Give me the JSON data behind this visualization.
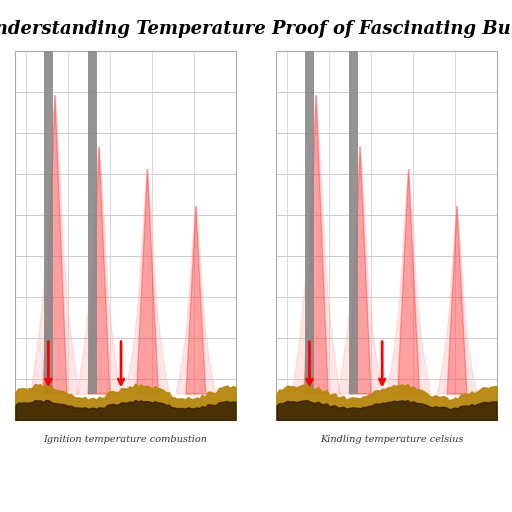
{
  "title": "Understanding Temperature Proof of Fascinating Burn",
  "background_color": "#ffffff",
  "left_caption": "Ignition temperature combustion",
  "right_caption": "Kindling temperature celsius",
  "grid_color": "#cccccc",
  "flame_color_outer": "#ffaaaa",
  "flame_color_inner": "#ff0000",
  "bar_color": "#888888",
  "paper_color_top": "#b8860b",
  "paper_color_dark": "#2d1a00",
  "arrow_color": "#ff0000",
  "num_grid_lines": 8,
  "title_fontsize": 13,
  "caption_fontsize": 7
}
